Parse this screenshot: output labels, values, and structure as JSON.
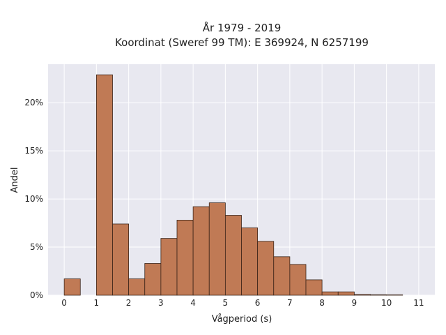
{
  "chart_data": {
    "type": "bar",
    "title": "År 1979 - 2019",
    "subtitle": "Koordinat (Sweref 99 TM): E 369924, N 6257199",
    "xlabel": "Vågperiod (s)",
    "ylabel": "Andel",
    "bin_width": 0.5,
    "x_ticks": [
      0,
      1,
      2,
      3,
      4,
      5,
      6,
      7,
      8,
      9,
      10,
      11
    ],
    "x_tick_labels": [
      "0",
      "1",
      "2",
      "3",
      "4",
      "5",
      "6",
      "7",
      "8",
      "9",
      "10",
      "11"
    ],
    "y_ticks": [
      0,
      5,
      10,
      15,
      20
    ],
    "y_tick_labels": [
      "0%",
      "5%",
      "10%",
      "15%",
      "20%"
    ],
    "xlim": [
      -0.5,
      11.5
    ],
    "ylim": [
      0,
      24
    ],
    "bins": [
      {
        "x0": 0.0,
        "value": 1.7
      },
      {
        "x0": 1.0,
        "value": 22.9
      },
      {
        "x0": 1.5,
        "value": 7.4
      },
      {
        "x0": 2.0,
        "value": 1.7
      },
      {
        "x0": 2.5,
        "value": 3.3
      },
      {
        "x0": 3.0,
        "value": 5.9
      },
      {
        "x0": 3.5,
        "value": 7.8
      },
      {
        "x0": 4.0,
        "value": 9.2
      },
      {
        "x0": 4.5,
        "value": 9.6
      },
      {
        "x0": 5.0,
        "value": 8.3
      },
      {
        "x0": 5.5,
        "value": 7.0
      },
      {
        "x0": 6.0,
        "value": 5.6
      },
      {
        "x0": 6.5,
        "value": 4.0
      },
      {
        "x0": 7.0,
        "value": 3.2
      },
      {
        "x0": 7.5,
        "value": 1.6
      },
      {
        "x0": 8.0,
        "value": 0.35
      },
      {
        "x0": 8.5,
        "value": 0.35
      },
      {
        "x0": 9.0,
        "value": 0.08
      },
      {
        "x0": 9.5,
        "value": 0.05
      },
      {
        "x0": 10.0,
        "value": 0.04
      }
    ],
    "grid": true,
    "colors": {
      "bar": "#c07a55",
      "bar_edge": "#3a2418",
      "plot_bg": "#e8e8f0",
      "grid": "#ffffff"
    }
  }
}
